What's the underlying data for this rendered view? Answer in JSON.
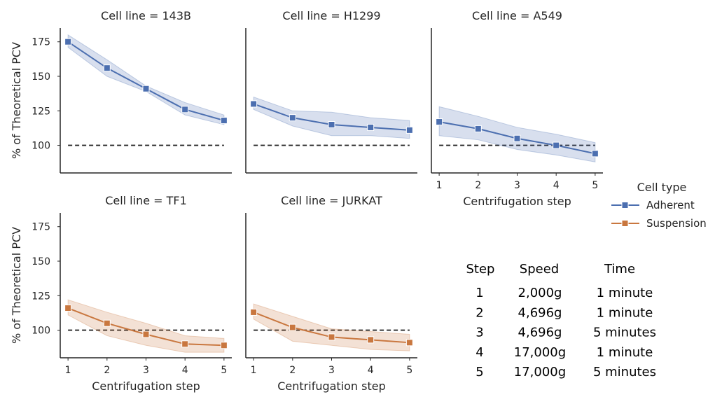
{
  "chart_data": {
    "type": "line",
    "ylabel": "% of Theoretical PCV",
    "xlabel": "Centrifugation step",
    "ylim": [
      80,
      185
    ],
    "xlim": [
      0.8,
      5.2
    ],
    "yticks": [
      100,
      125,
      150,
      175
    ],
    "xticks": [
      1,
      2,
      3,
      4,
      5
    ],
    "reference_line": 100,
    "colors": {
      "Adherent": "#4c6fb0",
      "Suspension": "#c9773f"
    },
    "legend": {
      "title": "Cell type",
      "entries": [
        "Adherent",
        "Suspension"
      ],
      "placement": "right"
    },
    "panels": [
      {
        "title": "Cell line = 143B",
        "type": "Adherent",
        "x": [
          1,
          2,
          3,
          4,
          5
        ],
        "values": [
          175,
          156,
          141,
          126,
          118
        ],
        "lower": [
          171,
          150,
          139,
          122,
          115
        ],
        "upper": [
          180,
          162,
          143,
          131,
          122
        ]
      },
      {
        "title": "Cell line = H1299",
        "type": "Adherent",
        "x": [
          1,
          2,
          3,
          4,
          5
        ],
        "values": [
          130,
          120,
          115,
          113,
          111
        ],
        "lower": [
          126,
          114,
          107,
          107,
          105
        ],
        "upper": [
          135,
          125,
          124,
          120,
          118
        ]
      },
      {
        "title": "Cell line = A549",
        "type": "Adherent",
        "x": [
          1,
          2,
          3,
          4,
          5
        ],
        "values": [
          117,
          112,
          105,
          100,
          94
        ],
        "lower": [
          107,
          104,
          97,
          93,
          88
        ],
        "upper": [
          128,
          121,
          113,
          108,
          102
        ]
      },
      {
        "title": "Cell line = TF1",
        "type": "Suspension",
        "x": [
          1,
          2,
          3,
          4,
          5
        ],
        "values": [
          116,
          105,
          97,
          90,
          89
        ],
        "lower": [
          111,
          96,
          89,
          84,
          84
        ],
        "upper": [
          122,
          113,
          105,
          96,
          94
        ]
      },
      {
        "title": "Cell line = JURKAT",
        "type": "Suspension",
        "x": [
          1,
          2,
          3,
          4,
          5
        ],
        "values": [
          113,
          102,
          95,
          93,
          91
        ],
        "lower": [
          108,
          92,
          89,
          86,
          85
        ],
        "upper": [
          119,
          110,
          101,
          99,
          97
        ]
      }
    ]
  },
  "table": {
    "headers": [
      "Step",
      "Speed",
      "Time"
    ],
    "rows": [
      [
        "1",
        "2,000g",
        "1 minute"
      ],
      [
        "2",
        "4,696g",
        "1 minute"
      ],
      [
        "3",
        "4,696g",
        "5 minutes"
      ],
      [
        "4",
        "17,000g",
        "1 minute"
      ],
      [
        "5",
        "17,000g",
        "5 minutes"
      ]
    ]
  }
}
